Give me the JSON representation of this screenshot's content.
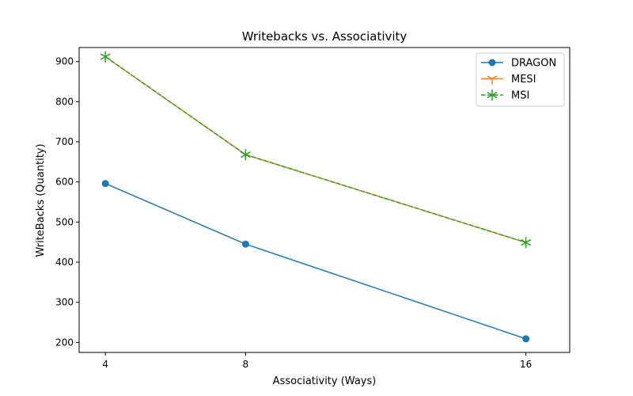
{
  "chart_data": {
    "type": "line",
    "title": "Writebacks vs. Associativity",
    "xlabel": "Associativity (Ways)",
    "ylabel": "WriteBacks (Quantity)",
    "x": [
      4,
      8,
      16
    ],
    "x_ticks": [
      "4",
      "8",
      "16"
    ],
    "y_ticks": [
      "200",
      "300",
      "400",
      "500",
      "600",
      "700",
      "800",
      "900"
    ],
    "xlim": [
      3.25,
      17.25
    ],
    "ylim": [
      175,
      935
    ],
    "grid": false,
    "legend_position": "top-right",
    "series": [
      {
        "name": "DRAGON",
        "values": [
          596,
          445,
          209
        ],
        "color": "#1f77b4",
        "marker": "circle",
        "linestyle": "solid"
      },
      {
        "name": "MESI",
        "values": [
          912,
          668,
          449
        ],
        "color": "#ff7f0e",
        "marker": "tri-down",
        "linestyle": "solid"
      },
      {
        "name": "MSI",
        "values": [
          912,
          668,
          449
        ],
        "color": "#2ca02c",
        "marker": "tri-star",
        "linestyle": "dashed"
      }
    ]
  }
}
